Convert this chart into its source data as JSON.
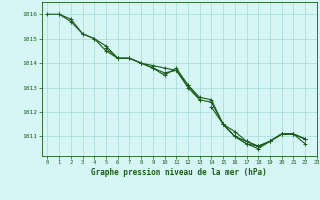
{
  "title": "Graphe pression niveau de la mer (hPa)",
  "background_color": "#d6f5f5",
  "grid_color": "#b0dede",
  "line_color": "#1a5c1a",
  "xlim": [
    -0.5,
    23
  ],
  "ylim": [
    1010.2,
    1016.5
  ],
  "xticks": [
    0,
    1,
    2,
    3,
    4,
    5,
    6,
    7,
    8,
    9,
    10,
    11,
    12,
    13,
    14,
    15,
    16,
    17,
    18,
    19,
    20,
    21,
    22,
    23
  ],
  "yticks": [
    1011,
    1012,
    1013,
    1014,
    1015,
    1016
  ],
  "series": [
    [
      1016.0,
      1016.0,
      1015.8,
      1015.2,
      1015.0,
      1014.7,
      1014.2,
      1014.2,
      1014.0,
      1013.9,
      1013.8,
      1013.7,
      1013.1,
      1012.6,
      1012.5,
      1011.5,
      1011.0,
      1010.7,
      1010.6,
      1010.8,
      1011.1,
      1011.1,
      1010.7,
      null
    ],
    [
      null,
      1016.0,
      1015.7,
      1015.2,
      1015.0,
      1014.5,
      1014.2,
      1014.2,
      1014.0,
      1013.8,
      1013.5,
      1013.8,
      1013.1,
      1012.5,
      null,
      null,
      null,
      null,
      null,
      null,
      null,
      null,
      null,
      null
    ],
    [
      null,
      null,
      null,
      null,
      null,
      1014.6,
      1014.2,
      1014.2,
      1014.0,
      1013.8,
      1013.6,
      1013.7,
      1013.0,
      1012.5,
      1012.4,
      1011.5,
      1011.0,
      1010.7,
      1010.5,
      1010.8,
      1011.1,
      1011.1,
      1010.9,
      null
    ],
    [
      null,
      null,
      null,
      null,
      null,
      null,
      null,
      null,
      null,
      null,
      null,
      null,
      null,
      null,
      1012.2,
      1011.5,
      1011.0,
      1010.8,
      1010.6,
      1010.8,
      1011.1,
      1011.1,
      1010.9,
      null
    ],
    [
      null,
      null,
      null,
      null,
      null,
      null,
      null,
      null,
      null,
      null,
      null,
      null,
      null,
      null,
      null,
      1011.5,
      1011.2,
      1010.8,
      1010.6,
      1010.8,
      1011.1,
      1011.1,
      1010.9,
      null
    ]
  ]
}
